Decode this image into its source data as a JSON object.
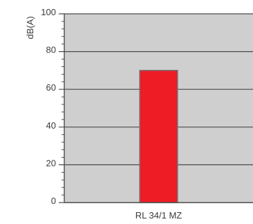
{
  "chart_data": {
    "type": "bar",
    "title": "",
    "xlabel": "",
    "ylabel": "dB(A)",
    "categories": [
      "RL 34/1 MZ"
    ],
    "values": [
      70
    ],
    "ylim": [
      0,
      100
    ],
    "y_ticks": [
      "0",
      "20",
      "40",
      "60",
      "80",
      "100"
    ],
    "minor_ticks_per_major": 4,
    "grid": true,
    "legend": "none",
    "colors": {
      "plot_background": "#cfcfcf",
      "bar_fill": "#ee1c25",
      "bar_stroke": "#7a6a6a",
      "grid": "#4a4a4a",
      "axis": "#4a4a4a"
    }
  }
}
